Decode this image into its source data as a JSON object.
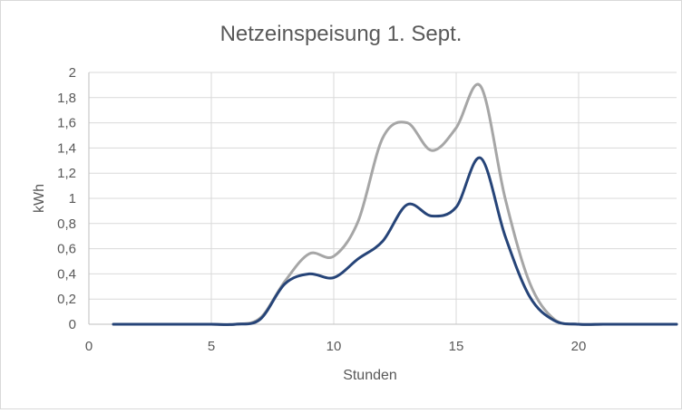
{
  "chart_data": {
    "type": "line",
    "title": "Netzeinspeisung  1. Sept.",
    "xlabel": "Stunden",
    "ylabel": "kWh",
    "xlim": [
      0,
      24
    ],
    "ylim": [
      0,
      2
    ],
    "x_ticks": [
      "0",
      "5",
      "10",
      "15",
      "20"
    ],
    "x_tick_values": [
      0,
      5,
      10,
      15,
      20
    ],
    "y_ticks": [
      "0",
      "0,2",
      "0,4",
      "0,6",
      "0,8",
      "1",
      "1,2",
      "1,4",
      "1,6",
      "1,8",
      "2"
    ],
    "y_tick_values": [
      0,
      0.2,
      0.4,
      0.6,
      0.8,
      1.0,
      1.2,
      1.4,
      1.6,
      1.8,
      2.0
    ],
    "grid": true,
    "x": [
      1,
      2,
      3,
      4,
      5,
      6,
      7,
      8,
      9,
      10,
      11,
      12,
      13,
      14,
      15,
      16,
      17,
      18,
      19,
      20,
      21,
      22,
      23,
      24
    ],
    "series": [
      {
        "color": "#a6a6a6",
        "values": [
          0,
          0,
          0,
          0,
          0,
          0,
          0.05,
          0.34,
          0.56,
          0.54,
          0.82,
          1.48,
          1.6,
          1.38,
          1.56,
          1.89,
          1.0,
          0.33,
          0.04,
          0,
          0,
          0,
          0,
          0
        ]
      },
      {
        "color": "#264478",
        "values": [
          0,
          0,
          0,
          0,
          0,
          0,
          0.04,
          0.32,
          0.4,
          0.37,
          0.52,
          0.66,
          0.95,
          0.86,
          0.93,
          1.32,
          0.7,
          0.22,
          0.03,
          0,
          0,
          0,
          0,
          0
        ]
      }
    ]
  }
}
